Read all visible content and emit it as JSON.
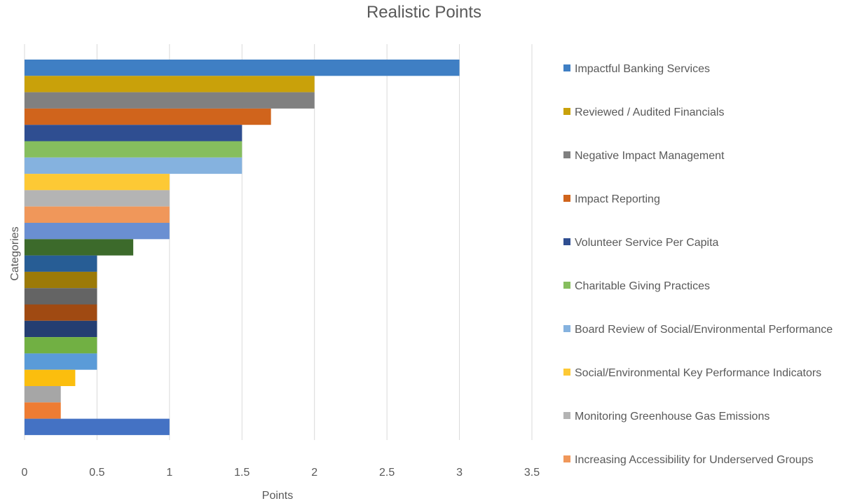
{
  "chart_data": {
    "type": "bar",
    "orientation": "horizontal",
    "title": "Realistic Points",
    "xlabel": "Points",
    "ylabel": "Categories",
    "xlim": [
      0,
      3.5
    ],
    "x_ticks": [
      "0",
      "0.5",
      "1",
      "1.5",
      "2",
      "2.5",
      "3",
      "3.5"
    ],
    "grid": "vertical",
    "legend_position": "right",
    "series": [
      {
        "name": "Impactful Banking Services",
        "value": 3.0,
        "color": "#3F7FC4"
      },
      {
        "name": "Reviewed / Audited Financials",
        "value": 2.0,
        "color": "#C9A10A"
      },
      {
        "name": "Negative Impact Management",
        "value": 2.0,
        "color": "#808080"
      },
      {
        "name": "Impact Reporting",
        "value": 1.7,
        "color": "#D0641C"
      },
      {
        "name": "Volunteer Service Per Capita",
        "value": 1.5,
        "color": "#2F4E91"
      },
      {
        "name": "Charitable Giving Practices",
        "value": 1.5,
        "color": "#86BE5E"
      },
      {
        "name": "Board Review of Social/Environmental Performance",
        "value": 1.5,
        "color": "#85B2DF"
      },
      {
        "name": "Social/Environmental Key Performance Indicators",
        "value": 1.0,
        "color": "#FDC935"
      },
      {
        "name": "Monitoring Greenhouse Gas Emissions",
        "value": 1.0,
        "color": "#B4B4B4"
      },
      {
        "name": "Increasing Accessibility for Underserved Groups",
        "value": 1.0,
        "color": "#F0975A"
      },
      {
        "value": 1.0,
        "color": "#6A8FD2"
      },
      {
        "value": 0.75,
        "color": "#3C6A2B"
      },
      {
        "value": 0.5,
        "color": "#275D95"
      },
      {
        "value": 0.5,
        "color": "#9C7A08"
      },
      {
        "value": 0.5,
        "color": "#646464"
      },
      {
        "value": 0.5,
        "color": "#A04A12"
      },
      {
        "value": 0.5,
        "color": "#243E72"
      },
      {
        "value": 0.5,
        "color": "#71B043"
      },
      {
        "value": 0.5,
        "color": "#5A9BD8"
      },
      {
        "value": 0.35,
        "color": "#FBBE0E"
      },
      {
        "value": 0.25,
        "color": "#A6A6A6"
      },
      {
        "value": 0.25,
        "color": "#EE7C33"
      },
      {
        "value": 1.0,
        "color": "#4472C4"
      }
    ]
  }
}
